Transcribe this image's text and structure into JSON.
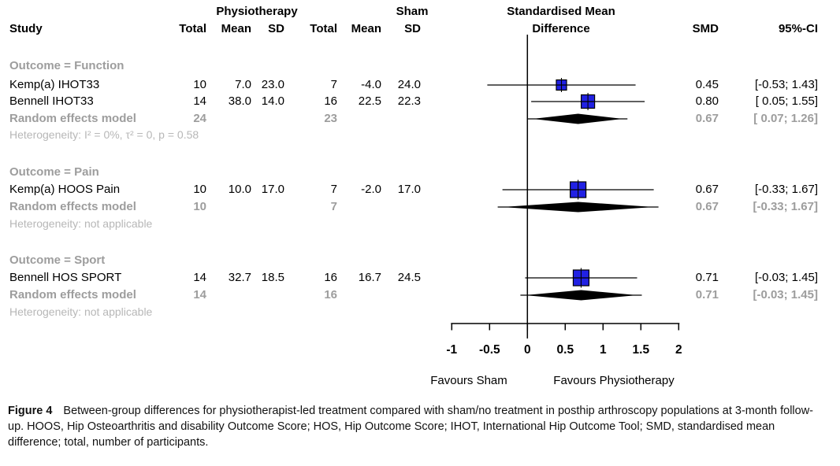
{
  "header": {
    "study": "Study",
    "group1_label": "Physiotherapy",
    "group2_label": "Sham",
    "col_total": "Total",
    "col_mean": "Mean",
    "col_sd": "SD",
    "effect_title_line1": "Standardised Mean",
    "effect_title_line2": "Difference",
    "col_smd": "SMD",
    "col_ci": "95%-CI"
  },
  "sections": [
    {
      "title": "Outcome = Function",
      "rows": [
        {
          "study": "Kemp(a) IHOT33",
          "total1": "10",
          "mean1": "7.0",
          "sd1": "23.0",
          "total2": "7",
          "mean2": "-4.0",
          "sd2": "24.0",
          "smd": "0.45",
          "ci": "[-0.53; 1.43]"
        },
        {
          "study": "Bennell IHOT33",
          "total1": "14",
          "mean1": "38.0",
          "sd1": "14.0",
          "total2": "16",
          "mean2": "22.5",
          "sd2": "22.3",
          "smd": "0.80",
          "ci": "[ 0.05; 1.55]"
        }
      ],
      "pooled": {
        "label": "Random effects model",
        "total1": "24",
        "total2": "23",
        "smd": "0.67",
        "ci": "[ 0.07; 1.26]"
      },
      "heterogeneity": "Heterogeneity: I² = 0%, τ² = 0, p = 0.58"
    },
    {
      "title": "Outcome = Pain",
      "rows": [
        {
          "study": "Kemp(a) HOOS Pain",
          "total1": "10",
          "mean1": "10.0",
          "sd1": "17.0",
          "total2": "7",
          "mean2": "-2.0",
          "sd2": "17.0",
          "smd": "0.67",
          "ci": "[-0.33; 1.67]"
        }
      ],
      "pooled": {
        "label": "Random effects model",
        "total1": "10",
        "total2": "7",
        "smd": "0.67",
        "ci": "[-0.33; 1.67]"
      },
      "heterogeneity": "Heterogeneity: not applicable"
    },
    {
      "title": "Outcome = Sport",
      "rows": [
        {
          "study": "Bennell HOS SPORT",
          "total1": "14",
          "mean1": "32.7",
          "sd1": "18.5",
          "total2": "16",
          "mean2": "16.7",
          "sd2": "24.5",
          "smd": "0.71",
          "ci": "[-0.03; 1.45]"
        }
      ],
      "pooled": {
        "label": "Random effects model",
        "total1": "14",
        "total2": "16",
        "smd": "0.71",
        "ci": "[-0.03; 1.45]"
      },
      "heterogeneity": "Heterogeneity: not applicable"
    }
  ],
  "caption": {
    "label": "Figure 4",
    "text": "Between-group differences for physiotherapist-led treatment compared with sham/no treatment in posthip arthroscopy populations at 3-month follow-up. HOOS, Hip Osteoarthritis and disability Outcome Score; HOS, Hip Outcome Score; IHOT, International Hip Outcome Tool; SMD, standardised mean difference; total, number of participants."
  },
  "colors": {
    "square_fill": "#2121e3",
    "diamond_fill": "#000000",
    "pooled_gray": "#9d9d9d",
    "heterogeneity_gray": "#b7b7b7",
    "line_black": "#000000"
  },
  "chart_data": {
    "type": "forest",
    "effect_measure": "Standardised Mean Difference",
    "xlim": [
      -1,
      2
    ],
    "ticks": [
      -1,
      -0.5,
      0,
      0.5,
      1,
      1.5,
      2
    ],
    "zero_line": 0,
    "favours_left": "Favours Sham",
    "favours_right": "Favours Physiotherapy",
    "groups": [
      {
        "outcome": "Function",
        "studies": [
          {
            "label": "Kemp(a) IHOT33",
            "n_physio": 10,
            "mean_physio": 7.0,
            "sd_physio": 23.0,
            "n_sham": 7,
            "mean_sham": -4.0,
            "sd_sham": 24.0,
            "smd": 0.45,
            "ci_low": -0.53,
            "ci_high": 1.43
          },
          {
            "label": "Bennell IHOT33",
            "n_physio": 14,
            "mean_physio": 38.0,
            "sd_physio": 14.0,
            "n_sham": 16,
            "mean_sham": 22.5,
            "sd_sham": 22.3,
            "smd": 0.8,
            "ci_low": 0.05,
            "ci_high": 1.55
          }
        ],
        "pooled": {
          "model": "Random effects model",
          "n_physio": 24,
          "n_sham": 23,
          "smd": 0.67,
          "ci_low": 0.07,
          "ci_high": 1.26
        },
        "heterogeneity": "I² = 0%, τ² = 0, p = 0.58"
      },
      {
        "outcome": "Pain",
        "studies": [
          {
            "label": "Kemp(a) HOOS Pain",
            "n_physio": 10,
            "mean_physio": 10.0,
            "sd_physio": 17.0,
            "n_sham": 7,
            "mean_sham": -2.0,
            "sd_sham": 17.0,
            "smd": 0.67,
            "ci_low": -0.33,
            "ci_high": 1.67
          }
        ],
        "pooled": {
          "model": "Random effects model",
          "n_physio": 10,
          "n_sham": 7,
          "smd": 0.67,
          "ci_low": -0.33,
          "ci_high": 1.67
        },
        "heterogeneity": "not applicable"
      },
      {
        "outcome": "Sport",
        "studies": [
          {
            "label": "Bennell HOS SPORT",
            "n_physio": 14,
            "mean_physio": 32.7,
            "sd_physio": 18.5,
            "n_sham": 16,
            "mean_sham": 16.7,
            "sd_sham": 24.5,
            "smd": 0.71,
            "ci_low": -0.03,
            "ci_high": 1.45
          }
        ],
        "pooled": {
          "model": "Random effects model",
          "n_physio": 14,
          "n_sham": 16,
          "smd": 0.71,
          "ci_low": -0.03,
          "ci_high": 1.45
        },
        "heterogeneity": "not applicable"
      }
    ]
  }
}
